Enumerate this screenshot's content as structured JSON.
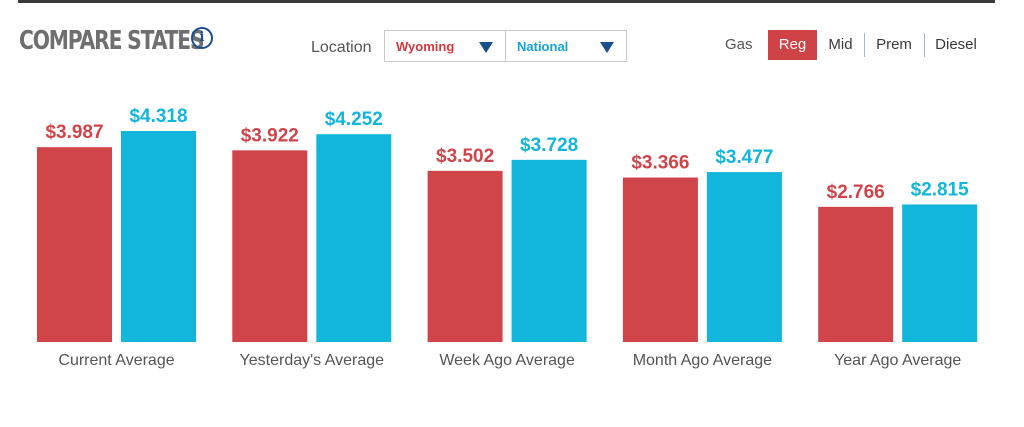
{
  "header": {
    "title": "COMPARE STATES",
    "info_icon": "info-icon"
  },
  "location": {
    "label": "Location",
    "selected_state": "Wyoming",
    "selected_comparison": "National"
  },
  "fuel": {
    "label": "Gas",
    "options": [
      "Reg",
      "Mid",
      "Prem",
      "Diesel"
    ],
    "active": "Reg"
  },
  "colors": {
    "state": "#d0454a",
    "national": "#12b5db",
    "active_tab": "#cf4347",
    "accent": "#1a4f8c"
  },
  "chart_data": {
    "type": "bar",
    "title": "",
    "xlabel": "",
    "ylabel": "",
    "grid": false,
    "categories": [
      "Current Average",
      "Yesterday's Average",
      "Week Ago Average",
      "Month Ago Average",
      "Year Ago Average"
    ],
    "series": [
      {
        "name": "Wyoming",
        "values": [
          3.987,
          3.922,
          3.502,
          3.366,
          2.766
        ],
        "labels": [
          "$3.987",
          "$3.922",
          "$3.502",
          "$3.366",
          "$2.766"
        ]
      },
      {
        "name": "National",
        "values": [
          4.318,
          4.252,
          3.728,
          3.477,
          2.815
        ],
        "labels": [
          "$4.318",
          "$4.252",
          "$3.728",
          "$3.477",
          "$2.815"
        ]
      }
    ],
    "ylim": [
      0,
      4.318
    ]
  }
}
